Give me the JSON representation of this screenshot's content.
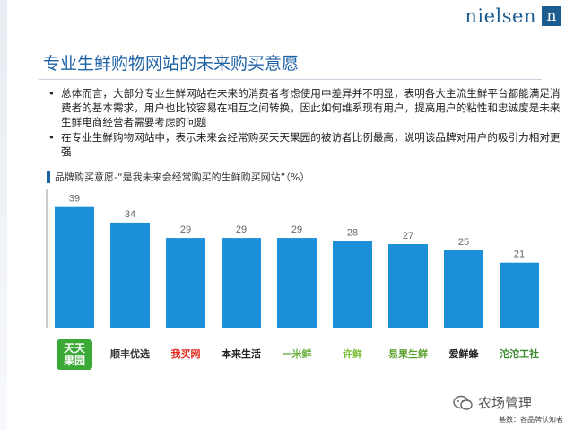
{
  "brand": {
    "name": "nielsen",
    "mark": "n"
  },
  "slide": {
    "title": "专业生鲜购物网站的未来购买意愿",
    "bullets": [
      "总体而言，大部分专业生鲜网站在未来的消费者考虑使用中差异并不明显，表明各大主流生鲜平台都能满足消费者的基本需求，用户也比较容易在相互之间转换，因此如何维系现有用户，提高用户的粘性和忠诚度是未来生鲜电商经营者需要考虑的问题",
      "在专业生鲜购物网站中，表示未来会经常购买天天果园的被访者比例最高，说明该品牌对用户的吸引力相对更强"
    ],
    "chart_heading": "品牌购买意愿-“是我未来会经常购买的生鲜购买网站”（%）",
    "source": "基数：各品牌认知者",
    "watermark": "农场管理"
  },
  "chart_data": {
    "type": "bar",
    "categories": [
      "天天果园",
      "顺丰优选 sfbest.com",
      "我买网",
      "本来生活 benlai.com",
      "一米鲜 1mxian.com",
      "许鲜",
      "易果生鲜 YIGUO",
      "爱鲜蜂 BEEQUICK",
      "沱沱工社 tootoo.cn"
    ],
    "values": [
      39,
      34,
      29,
      29,
      29,
      28,
      27,
      25,
      21
    ],
    "ylim": [
      0,
      45
    ],
    "bar_color": "#1b8fd8",
    "label_color": "#666666",
    "title": "",
    "xlabel": "",
    "ylabel": "",
    "grid": false
  },
  "logos": [
    {
      "text": "天天\n果园",
      "color": "#ffffff",
      "bg": "#3aa935",
      "icon": "tiantian-logo"
    },
    {
      "text": "顺丰优选",
      "color": "#333333",
      "bg": "",
      "icon": "sfbest-logo"
    },
    {
      "text": "我买网",
      "color": "#e2231a",
      "bg": "",
      "icon": "womai-logo"
    },
    {
      "text": "本来生活",
      "color": "#222222",
      "bg": "",
      "icon": "benlai-logo"
    },
    {
      "text": "一米鲜",
      "color": "#6ab33f",
      "bg": "",
      "icon": "yimixian-logo"
    },
    {
      "text": "许鲜",
      "color": "#7cbf3a",
      "bg": "",
      "icon": "xuxian-logo"
    },
    {
      "text": "易果生鲜",
      "color": "#5aa02c",
      "bg": "",
      "icon": "yiguo-logo"
    },
    {
      "text": "爱鲜蜂",
      "color": "#222222",
      "bg": "",
      "icon": "beequick-logo"
    },
    {
      "text": "沱沱工社",
      "color": "#3d8b2f",
      "bg": "",
      "icon": "tootoo-logo"
    }
  ]
}
